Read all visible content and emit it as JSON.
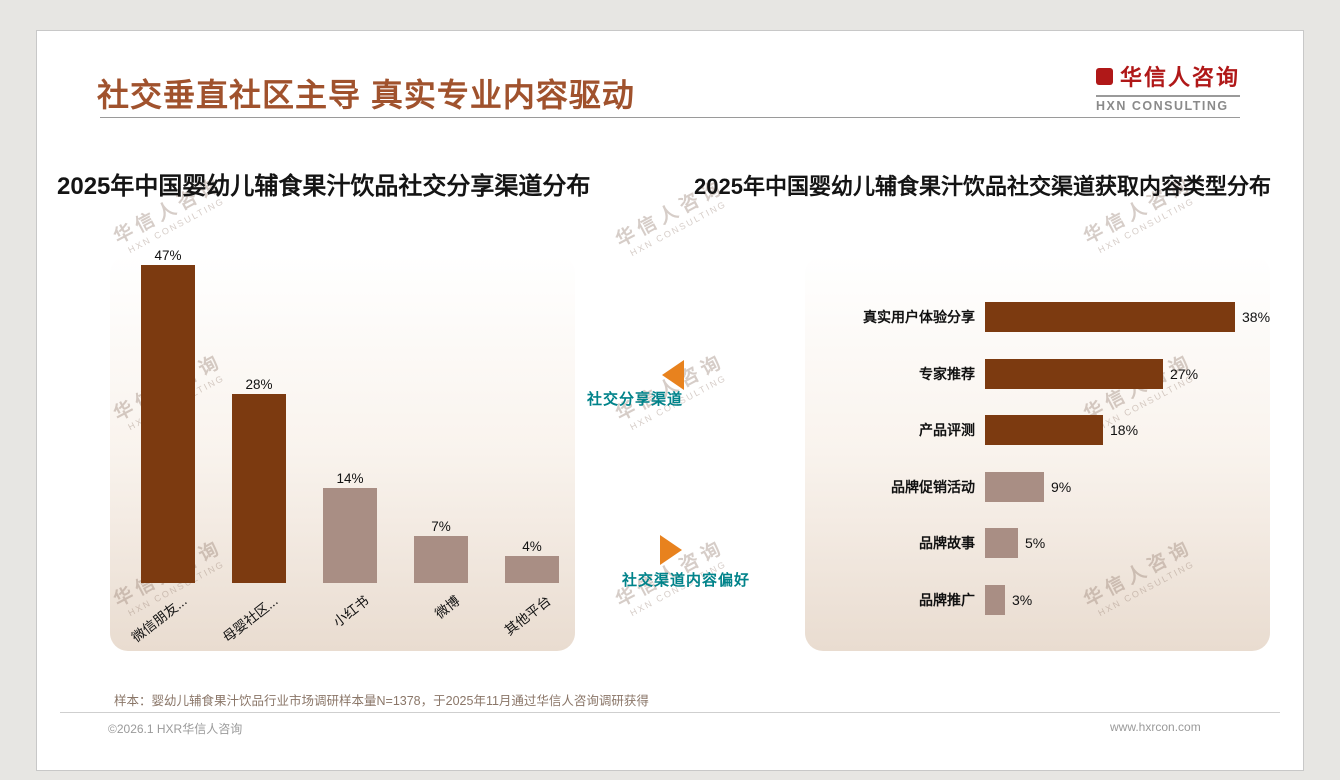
{
  "page": {
    "title": "社交垂直社区主导 真实专业内容驱动",
    "logo": {
      "name": "华信人咨询",
      "subtitle": "HXN CONSULTING"
    },
    "watermark": {
      "line1": "华信人咨询",
      "line2": "HXN CONSULTING"
    },
    "annotations": [
      {
        "label": "社交分享渠道",
        "arrow": "left"
      },
      {
        "label": "社交渠道内容偏好",
        "arrow": "right"
      }
    ],
    "footnote": "样本：婴幼儿辅食果汁饮品行业市场调研样本量N=1378，于2025年11月通过华信人咨询调研获得",
    "footer": {
      "left": "©2026.1 HXR华信人咨询",
      "right": "www.hxrcon.com"
    },
    "colors": {
      "title": "#A0522D",
      "logo_red": "#B01818",
      "dark_bar": "#7C3A10",
      "light_bar": "#A98E84",
      "annotation_text": "#00838A",
      "annotation_arrow": "#E8821E"
    }
  },
  "chart_data": [
    {
      "type": "bar",
      "orientation": "vertical",
      "title": "2025年中国婴幼儿辅食果汁饮品社交分享渠道分布",
      "categories": [
        "微信朋友...",
        "母婴社区...",
        "小红书",
        "微博",
        "其他平台"
      ],
      "values": [
        47,
        28,
        14,
        7,
        4
      ],
      "value_labels": [
        "47%",
        "28%",
        "14%",
        "7%",
        "4%"
      ],
      "unit": "%",
      "ylim": [
        0,
        50
      ],
      "bar_colors": [
        "#7C3A10",
        "#7C3A10",
        "#A98E84",
        "#A98E84",
        "#A98E84"
      ],
      "grid": false,
      "legend": "none"
    },
    {
      "type": "bar",
      "orientation": "horizontal",
      "title": "2025年中国婴幼儿辅食果汁饮品社交渠道获取内容类型分布",
      "categories": [
        "真实用户体验分享",
        "专家推荐",
        "产品评测",
        "品牌促销活动",
        "品牌故事",
        "品牌推广"
      ],
      "values": [
        38,
        27,
        18,
        9,
        5,
        3
      ],
      "value_labels": [
        "38%",
        "27%",
        "18%",
        "9%",
        "5%",
        "3%"
      ],
      "unit": "%",
      "xlim": [
        0,
        40
      ],
      "bar_colors": [
        "#7C3A10",
        "#7C3A10",
        "#7C3A10",
        "#A98E84",
        "#A98E84",
        "#A98E84"
      ],
      "grid": false,
      "legend": "none"
    }
  ]
}
